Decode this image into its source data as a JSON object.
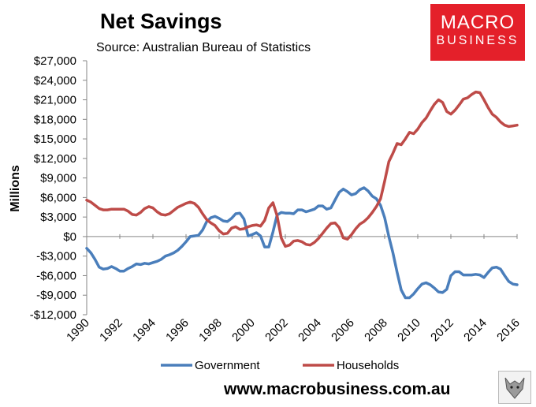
{
  "header": {
    "title": "Net Savings",
    "source": "Source: Australian Bureau of Statistics"
  },
  "logo": {
    "line1": "MACRO",
    "line2": "BUSINESS",
    "color": "#e4202a"
  },
  "footer": {
    "website": "www.macrobusiness.com.au"
  },
  "chart_data": {
    "type": "line",
    "title": "Net Savings",
    "xlabel": "",
    "ylabel": "Millions",
    "xlim": [
      1990,
      2016
    ],
    "ylim": [
      -12000,
      27000
    ],
    "y_ticks": [
      -12000,
      -9000,
      -6000,
      -3000,
      0,
      3000,
      6000,
      9000,
      12000,
      15000,
      18000,
      21000,
      24000,
      27000
    ],
    "y_tick_labels": [
      "-$12,000",
      "-$9,000",
      "-$6,000",
      "-$3,000",
      "$0",
      "$3,000",
      "$6,000",
      "$9,000",
      "$12,000",
      "$15,000",
      "$18,000",
      "$21,000",
      "$24,000",
      "$27,000"
    ],
    "x_ticks": [
      1990,
      1992,
      1994,
      1996,
      1998,
      2000,
      2002,
      2004,
      2006,
      2008,
      2010,
      2012,
      2014,
      2016
    ],
    "x_tick_labels": [
      "1990",
      "1992",
      "1994",
      "1996",
      "1998",
      "2000",
      "2002",
      "2004",
      "2006",
      "2008",
      "2010",
      "2012",
      "2014",
      "2016"
    ],
    "legend_position": "bottom",
    "grid": false,
    "series": [
      {
        "name": "Government",
        "color": "#4a7ebb",
        "points": [
          [
            1990,
            -1800
          ],
          [
            1990.25,
            -2500
          ],
          [
            1990.5,
            -3500
          ],
          [
            1990.75,
            -4700
          ],
          [
            1991,
            -5000
          ],
          [
            1991.25,
            -4900
          ],
          [
            1991.5,
            -4600
          ],
          [
            1991.75,
            -4900
          ],
          [
            1992,
            -5300
          ],
          [
            1992.25,
            -5300
          ],
          [
            1992.5,
            -4900
          ],
          [
            1992.75,
            -4600
          ],
          [
            1993,
            -4200
          ],
          [
            1993.25,
            -4300
          ],
          [
            1993.5,
            -4100
          ],
          [
            1993.75,
            -4200
          ],
          [
            1994,
            -4000
          ],
          [
            1994.25,
            -3800
          ],
          [
            1994.5,
            -3500
          ],
          [
            1994.75,
            -3000
          ],
          [
            1995,
            -2800
          ],
          [
            1995.25,
            -2500
          ],
          [
            1995.5,
            -2100
          ],
          [
            1995.75,
            -1500
          ],
          [
            1996,
            -800
          ],
          [
            1996.25,
            0
          ],
          [
            1996.5,
            100
          ],
          [
            1996.75,
            200
          ],
          [
            1997,
            1000
          ],
          [
            1997.25,
            2300
          ],
          [
            1997.5,
            2900
          ],
          [
            1997.75,
            3100
          ],
          [
            1998,
            2800
          ],
          [
            1998.25,
            2400
          ],
          [
            1998.5,
            2300
          ],
          [
            1998.75,
            2800
          ],
          [
            1999,
            3500
          ],
          [
            1999.25,
            3600
          ],
          [
            1999.5,
            2700
          ],
          [
            1999.75,
            100
          ],
          [
            2000,
            300
          ],
          [
            2000.25,
            600
          ],
          [
            2000.5,
            100
          ],
          [
            2000.75,
            -1600
          ],
          [
            2001,
            -1600
          ],
          [
            2001.25,
            700
          ],
          [
            2001.5,
            3300
          ],
          [
            2001.75,
            3700
          ],
          [
            2002,
            3600
          ],
          [
            2002.25,
            3600
          ],
          [
            2002.5,
            3500
          ],
          [
            2002.75,
            4100
          ],
          [
            2003,
            4100
          ],
          [
            2003.25,
            3800
          ],
          [
            2003.5,
            4000
          ],
          [
            2003.75,
            4200
          ],
          [
            2004,
            4700
          ],
          [
            2004.25,
            4700
          ],
          [
            2004.5,
            4200
          ],
          [
            2004.75,
            4400
          ],
          [
            2005,
            5600
          ],
          [
            2005.25,
            6800
          ],
          [
            2005.5,
            7300
          ],
          [
            2005.75,
            6900
          ],
          [
            2006,
            6400
          ],
          [
            2006.25,
            6600
          ],
          [
            2006.5,
            7200
          ],
          [
            2006.75,
            7500
          ],
          [
            2007,
            7000
          ],
          [
            2007.25,
            6200
          ],
          [
            2007.5,
            5800
          ],
          [
            2007.75,
            4800
          ],
          [
            2008,
            2900
          ],
          [
            2008.25,
            0
          ],
          [
            2008.5,
            -2500
          ],
          [
            2008.75,
            -5500
          ],
          [
            2009,
            -8200
          ],
          [
            2009.25,
            -9400
          ],
          [
            2009.5,
            -9400
          ],
          [
            2009.75,
            -8800
          ],
          [
            2010,
            -8000
          ],
          [
            2010.25,
            -7300
          ],
          [
            2010.5,
            -7100
          ],
          [
            2010.75,
            -7400
          ],
          [
            2011,
            -7900
          ],
          [
            2011.25,
            -8500
          ],
          [
            2011.5,
            -8600
          ],
          [
            2011.75,
            -8100
          ],
          [
            2012,
            -6000
          ],
          [
            2012.25,
            -5400
          ],
          [
            2012.5,
            -5400
          ],
          [
            2012.75,
            -5900
          ],
          [
            2013,
            -5900
          ],
          [
            2013.25,
            -5900
          ],
          [
            2013.5,
            -5800
          ],
          [
            2013.75,
            -5900
          ],
          [
            2014,
            -6300
          ],
          [
            2014.25,
            -5500
          ],
          [
            2014.5,
            -4800
          ],
          [
            2014.75,
            -4700
          ],
          [
            2015,
            -5000
          ],
          [
            2015.25,
            -6000
          ],
          [
            2015.5,
            -6900
          ],
          [
            2015.75,
            -7300
          ],
          [
            2016,
            -7400
          ]
        ]
      },
      {
        "name": "Households",
        "color": "#be4b48",
        "points": [
          [
            1990,
            5600
          ],
          [
            1990.25,
            5300
          ],
          [
            1990.5,
            4800
          ],
          [
            1990.75,
            4300
          ],
          [
            1991,
            4100
          ],
          [
            1991.25,
            4100
          ],
          [
            1991.5,
            4200
          ],
          [
            1991.75,
            4200
          ],
          [
            1992,
            4200
          ],
          [
            1992.25,
            4200
          ],
          [
            1992.5,
            3900
          ],
          [
            1992.75,
            3400
          ],
          [
            1993,
            3300
          ],
          [
            1993.25,
            3700
          ],
          [
            1993.5,
            4300
          ],
          [
            1993.75,
            4600
          ],
          [
            1994,
            4400
          ],
          [
            1994.25,
            3800
          ],
          [
            1994.5,
            3400
          ],
          [
            1994.75,
            3300
          ],
          [
            1995,
            3500
          ],
          [
            1995.25,
            4000
          ],
          [
            1995.5,
            4500
          ],
          [
            1995.75,
            4800
          ],
          [
            1996,
            5100
          ],
          [
            1996.25,
            5300
          ],
          [
            1996.5,
            5100
          ],
          [
            1996.75,
            4500
          ],
          [
            1997,
            3500
          ],
          [
            1997.25,
            2600
          ],
          [
            1997.5,
            2100
          ],
          [
            1997.75,
            1700
          ],
          [
            1998,
            900
          ],
          [
            1998.25,
            400
          ],
          [
            1998.5,
            500
          ],
          [
            1998.75,
            1300
          ],
          [
            1999,
            1500
          ],
          [
            1999.25,
            1100
          ],
          [
            1999.5,
            1200
          ],
          [
            1999.75,
            1500
          ],
          [
            2000,
            1700
          ],
          [
            2000.25,
            1800
          ],
          [
            2000.5,
            1600
          ],
          [
            2000.75,
            2500
          ],
          [
            2001,
            4400
          ],
          [
            2001.25,
            5200
          ],
          [
            2001.5,
            3200
          ],
          [
            2001.75,
            -200
          ],
          [
            2002,
            -1500
          ],
          [
            2002.25,
            -1300
          ],
          [
            2002.5,
            -700
          ],
          [
            2002.75,
            -600
          ],
          [
            2003,
            -800
          ],
          [
            2003.25,
            -1200
          ],
          [
            2003.5,
            -1300
          ],
          [
            2003.75,
            -900
          ],
          [
            2004,
            -300
          ],
          [
            2004.25,
            500
          ],
          [
            2004.5,
            1300
          ],
          [
            2004.75,
            2000
          ],
          [
            2005,
            2100
          ],
          [
            2005.25,
            1400
          ],
          [
            2005.5,
            -200
          ],
          [
            2005.75,
            -400
          ],
          [
            2006,
            300
          ],
          [
            2006.25,
            1200
          ],
          [
            2006.5,
            1900
          ],
          [
            2006.75,
            2300
          ],
          [
            2007,
            2900
          ],
          [
            2007.25,
            3700
          ],
          [
            2007.5,
            4600
          ],
          [
            2007.75,
            5800
          ],
          [
            2008,
            8500
          ],
          [
            2008.25,
            11500
          ],
          [
            2008.5,
            12800
          ],
          [
            2008.75,
            14300
          ],
          [
            2009,
            14100
          ],
          [
            2009.25,
            15000
          ],
          [
            2009.5,
            16000
          ],
          [
            2009.75,
            15800
          ],
          [
            2010,
            16500
          ],
          [
            2010.25,
            17500
          ],
          [
            2010.5,
            18200
          ],
          [
            2010.75,
            19300
          ],
          [
            2011,
            20300
          ],
          [
            2011.25,
            21000
          ],
          [
            2011.5,
            20600
          ],
          [
            2011.75,
            19200
          ],
          [
            2012,
            18800
          ],
          [
            2012.25,
            19400
          ],
          [
            2012.5,
            20200
          ],
          [
            2012.75,
            21100
          ],
          [
            2013,
            21300
          ],
          [
            2013.25,
            21800
          ],
          [
            2013.5,
            22200
          ],
          [
            2013.75,
            22100
          ],
          [
            2014,
            21000
          ],
          [
            2014.25,
            19800
          ],
          [
            2014.5,
            18800
          ],
          [
            2014.75,
            18300
          ],
          [
            2015,
            17600
          ],
          [
            2015.25,
            17100
          ],
          [
            2015.5,
            16900
          ],
          [
            2015.75,
            17000
          ],
          [
            2016,
            17100
          ]
        ]
      }
    ]
  }
}
